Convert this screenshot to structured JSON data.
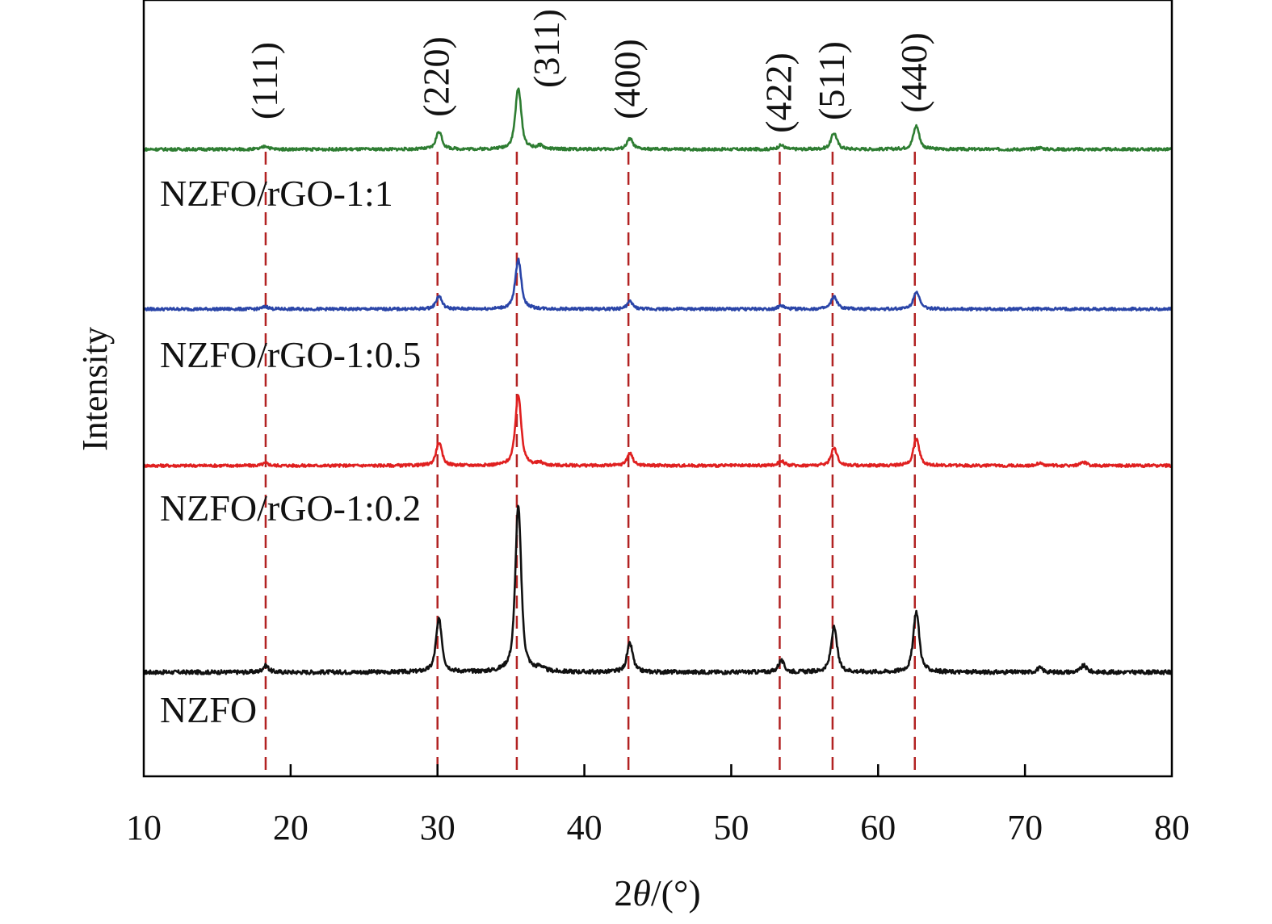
{
  "chart_data": {
    "type": "line",
    "title": "",
    "xlabel_prefix": "2",
    "xlabel_theta": "θ",
    "xlabel_suffix": "/(°)",
    "ylabel": "Intensity",
    "xlim": [
      10,
      80
    ],
    "ylim": [
      0,
      962
    ],
    "xticks": [
      10,
      20,
      30,
      40,
      50,
      60,
      70,
      80
    ],
    "xtick_labels": [
      "10",
      "20",
      "30",
      "40",
      "50",
      "60",
      "70",
      "80"
    ],
    "grid": false,
    "reference_lines": [
      {
        "x": 18.3,
        "label": "(111)"
      },
      {
        "x": 30.0,
        "label": "(220)"
      },
      {
        "x": 35.4,
        "label": "(311)"
      },
      {
        "x": 43.0,
        "label": "(400)"
      },
      {
        "x": 53.3,
        "label": "(422)"
      },
      {
        "x": 56.9,
        "label": "(511)"
      },
      {
        "x": 62.5,
        "label": "(440)"
      }
    ],
    "reference_color": "#b22222",
    "series": [
      {
        "name": "NZFO",
        "color": "#111111",
        "baseline": 129,
        "peaks": [
          [
            18.3,
            8
          ],
          [
            30.1,
            65
          ],
          [
            35.5,
            205
          ],
          [
            37.0,
            5
          ],
          [
            43.1,
            35
          ],
          [
            53.4,
            14
          ],
          [
            57.0,
            55
          ],
          [
            62.6,
            75
          ],
          [
            71.0,
            5
          ],
          [
            74.0,
            8
          ]
        ]
      },
      {
        "name": "NZFO/rGO-1:0.2",
        "color": "#e02020",
        "baseline": 385,
        "peaks": [
          [
            18.3,
            3
          ],
          [
            30.1,
            28
          ],
          [
            35.5,
            87
          ],
          [
            37.0,
            3
          ],
          [
            43.1,
            15
          ],
          [
            53.4,
            6
          ],
          [
            57.0,
            22
          ],
          [
            62.6,
            33
          ],
          [
            71.0,
            3
          ],
          [
            74.0,
            4
          ]
        ]
      },
      {
        "name": "NZFO/rGO-1:0.5",
        "color": "#2a45a8",
        "baseline": 579,
        "peaks": [
          [
            18.3,
            3
          ],
          [
            30.1,
            16
          ],
          [
            35.5,
            61
          ],
          [
            43.1,
            9
          ],
          [
            53.4,
            4
          ],
          [
            57.0,
            15
          ],
          [
            62.6,
            22
          ]
        ]
      },
      {
        "name": "NZFO/rGO-1:1",
        "color": "#2e7d32",
        "baseline": 777,
        "peaks": [
          [
            18.3,
            4
          ],
          [
            30.1,
            22
          ],
          [
            35.5,
            75
          ],
          [
            37.0,
            4
          ],
          [
            43.1,
            13
          ],
          [
            53.4,
            5
          ],
          [
            57.0,
            20
          ],
          [
            62.6,
            29
          ],
          [
            71.0,
            2
          ]
        ]
      }
    ]
  }
}
